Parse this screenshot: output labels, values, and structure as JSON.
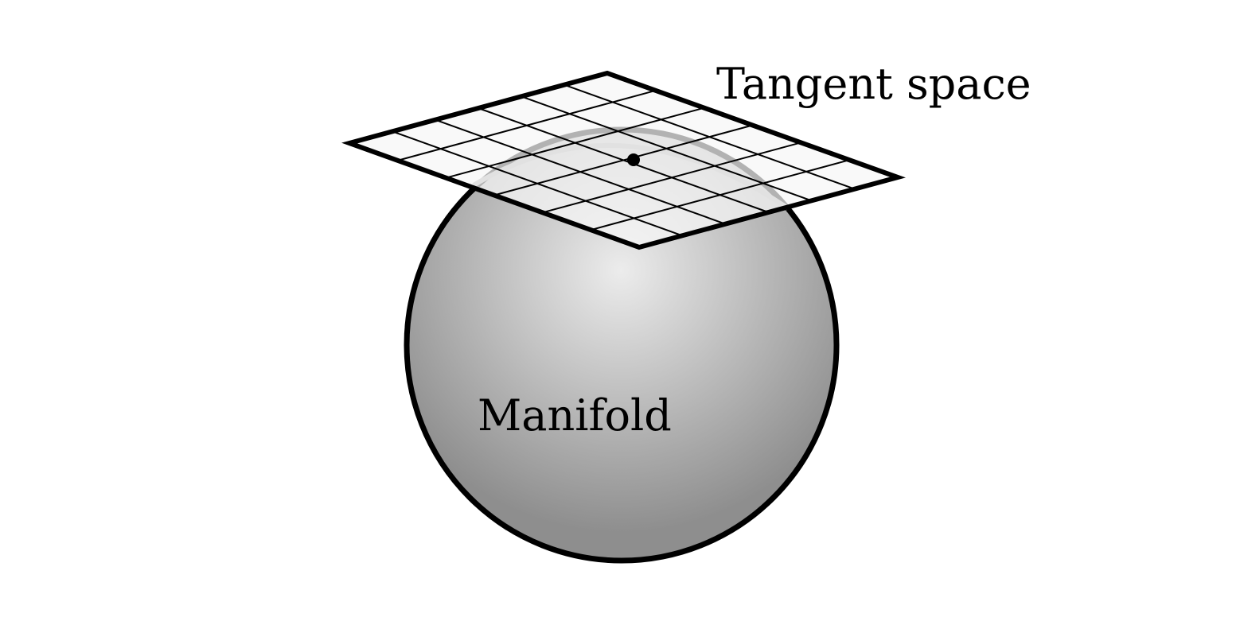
{
  "labels": {
    "tangent_space": "Tangent space",
    "manifold": "Manifold"
  },
  "colors": {
    "outline": "#000000",
    "sphere_highlight": "#ececec",
    "sphere_shadow": "#8e8e8e",
    "plane_fill": "#f6f6f6",
    "background": "#ffffff"
  },
  "plane_grid": {
    "divisions_u": 6,
    "divisions_v": 6
  }
}
